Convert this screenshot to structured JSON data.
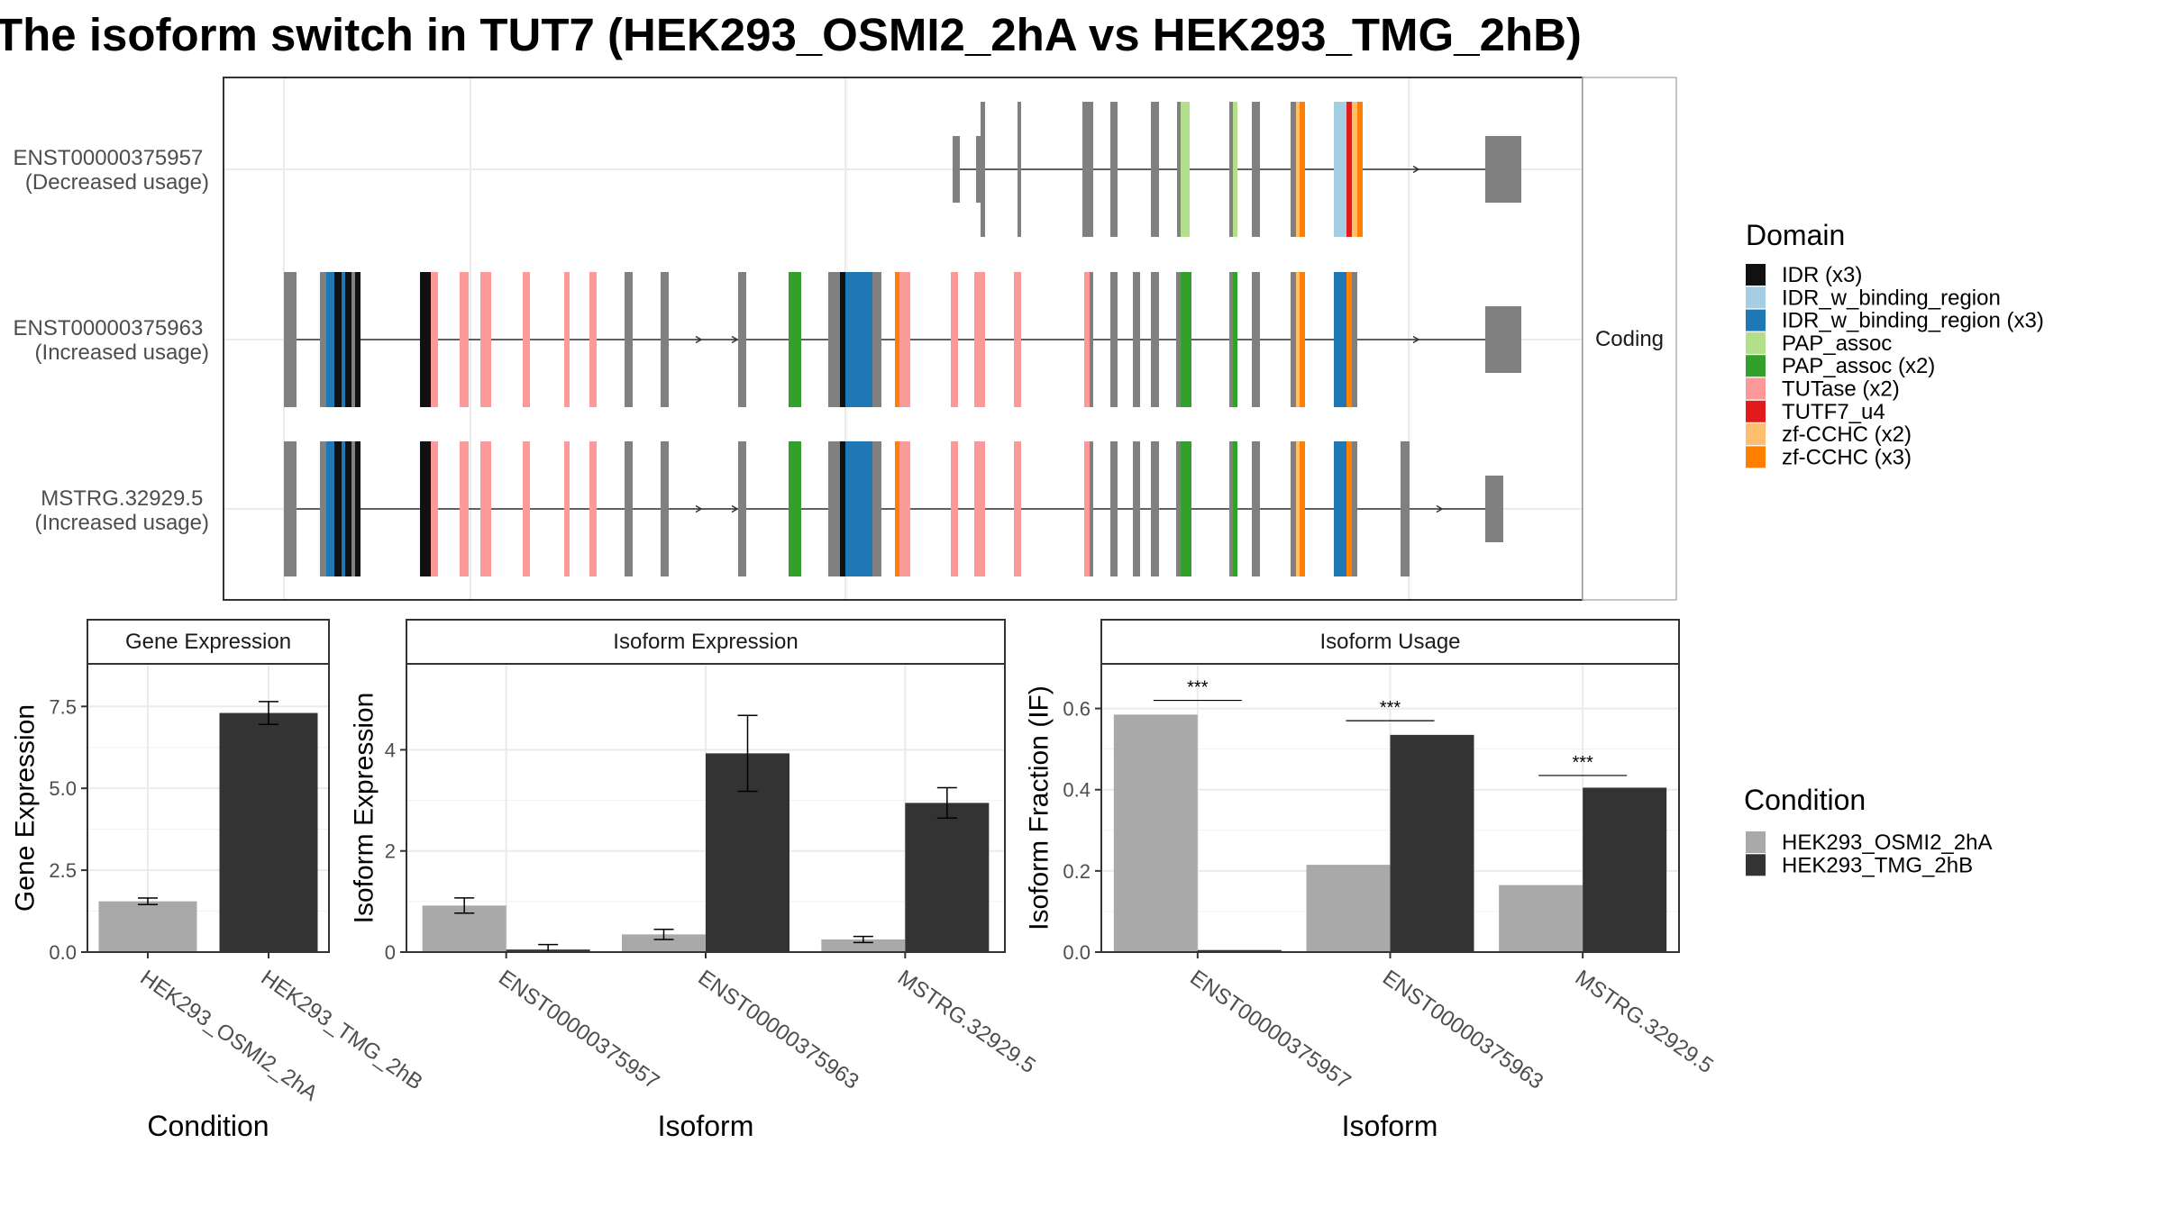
{
  "title": "The isoform switch in TUT7 (HEK293_OSMI2_2hA vs HEK293_TMG_2hB)",
  "colors": {
    "condition_a": "#a9a9a9",
    "condition_b": "#333333",
    "exon": "#808080",
    "panel_border": "#333333",
    "grid": "#ebebeb",
    "strip_bg": "#ffffff"
  },
  "isoform_structure": {
    "facet_label": "Coding",
    "transcripts": [
      {
        "id": "ENST00000375957",
        "usage": "(Decreased usage)"
      },
      {
        "id": "ENST00000375963",
        "usage": "(Increased usage)"
      },
      {
        "id": "MSTRG.32929.5",
        "usage": "(Increased usage)"
      }
    ]
  },
  "domain_legend": {
    "title": "Domain",
    "items": [
      {
        "label": "IDR (x3)",
        "color": "#111111"
      },
      {
        "label": "IDR_w_binding_region",
        "color": "#a6cee3"
      },
      {
        "label": "IDR_w_binding_region (x3)",
        "color": "#1f78b4"
      },
      {
        "label": "PAP_assoc",
        "color": "#b2df8a"
      },
      {
        "label": "PAP_assoc (x2)",
        "color": "#33a02c"
      },
      {
        "label": "TUTase (x2)",
        "color": "#fb9a99"
      },
      {
        "label": "TUTF7_u4",
        "color": "#e31a1c"
      },
      {
        "label": "zf-CCHC (x2)",
        "color": "#fdbf6f"
      },
      {
        "label": "zf-CCHC (x3)",
        "color": "#ff7f00"
      }
    ]
  },
  "condition_legend": {
    "title": "Condition",
    "items": [
      {
        "label": "HEK293_OSMI2_2hA",
        "color": "#a9a9a9"
      },
      {
        "label": "HEK293_TMG_2hB",
        "color": "#333333"
      }
    ]
  },
  "chart_data": [
    {
      "type": "bar",
      "title": "Gene Expression",
      "xlabel": "Condition",
      "ylabel": "Gene Expression",
      "categories": [
        "HEK293_OSMI2_2hA",
        "HEK293_TMG_2hB"
      ],
      "values": [
        1.55,
        7.3
      ],
      "error": [
        0.1,
        0.35
      ],
      "ylim": [
        0,
        8.8
      ],
      "yticks": [
        0.0,
        2.5,
        5.0,
        7.5
      ],
      "ytick_labels": [
        "0.0",
        "2.5",
        "5.0",
        "7.5"
      ]
    },
    {
      "type": "bar",
      "title": "Isoform Expression",
      "xlabel": "Isoform",
      "ylabel": "Isoform Expression",
      "categories": [
        "ENST00000375957",
        "ENST00000375963",
        "MSTRG.32929.5"
      ],
      "series": [
        {
          "name": "HEK293_OSMI2_2hA",
          "values": [
            0.92,
            0.35,
            0.25
          ],
          "error": [
            0.15,
            0.1,
            0.06
          ]
        },
        {
          "name": "HEK293_TMG_2hB",
          "values": [
            0.05,
            3.93,
            2.95
          ],
          "error": [
            0.1,
            0.75,
            0.3
          ]
        }
      ],
      "ylim": [
        0,
        5.7
      ],
      "yticks": [
        0,
        2,
        4
      ],
      "ytick_labels": [
        "0",
        "2",
        "4"
      ]
    },
    {
      "type": "bar",
      "title": "Isoform Usage",
      "xlabel": "Isoform",
      "ylabel": "Isoform Fraction (IF)",
      "categories": [
        "ENST00000375957",
        "ENST00000375963",
        "MSTRG.32929.5"
      ],
      "series": [
        {
          "name": "HEK293_OSMI2_2hA",
          "values": [
            0.585,
            0.215,
            0.165
          ]
        },
        {
          "name": "HEK293_TMG_2hB",
          "values": [
            0.005,
            0.535,
            0.405
          ]
        }
      ],
      "significance": [
        {
          "label": "***",
          "y": 0.62
        },
        {
          "label": "***",
          "y": 0.57
        },
        {
          "label": "***",
          "y": 0.435
        }
      ],
      "ylim": [
        0,
        0.71
      ],
      "yticks": [
        0.0,
        0.2,
        0.4,
        0.6
      ],
      "ytick_labels": [
        "0.0",
        "0.2",
        "0.4",
        "0.6"
      ]
    }
  ]
}
